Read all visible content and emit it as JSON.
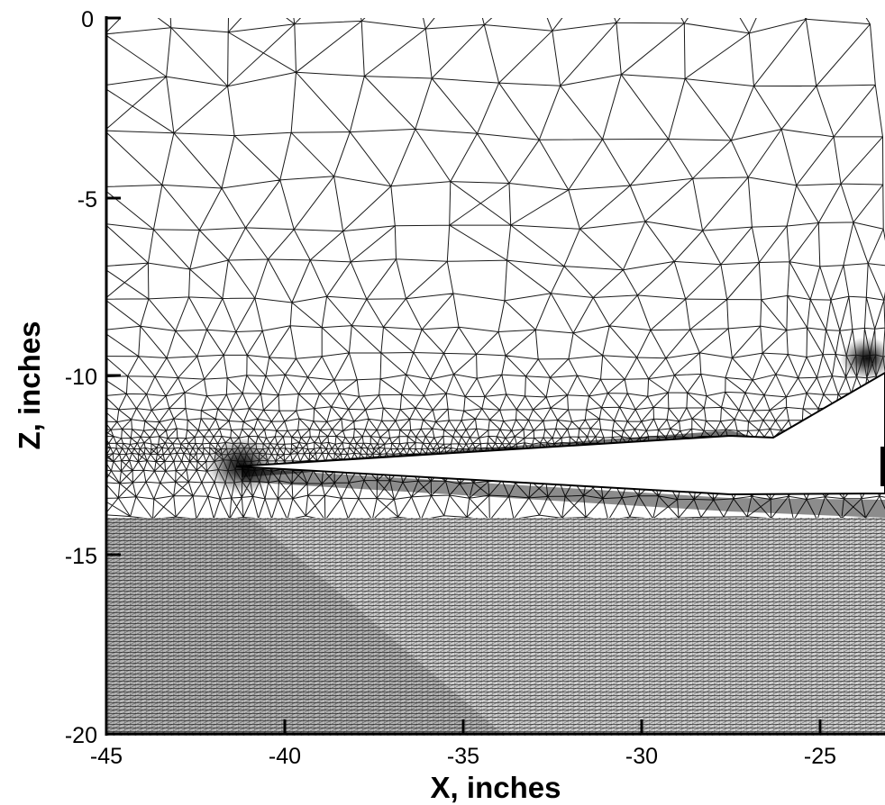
{
  "figure": {
    "xlabel": "X, inches",
    "ylabel": "Z, inches",
    "x_ticks": [
      "-45",
      "-40",
      "-35",
      "-30",
      "-25"
    ],
    "y_ticks": [
      "0",
      "-5",
      "-10",
      "-15",
      "-20"
    ],
    "x_range": [
      -45,
      -22.4
    ],
    "y_range": [
      -20,
      0
    ],
    "description_type": "unstructured triangular mesh around inlet lip above structured boundary-layer grid",
    "colors": {
      "mesh": "#1a1a1a",
      "background": "#ffffff",
      "body": "#ffffff"
    }
  }
}
